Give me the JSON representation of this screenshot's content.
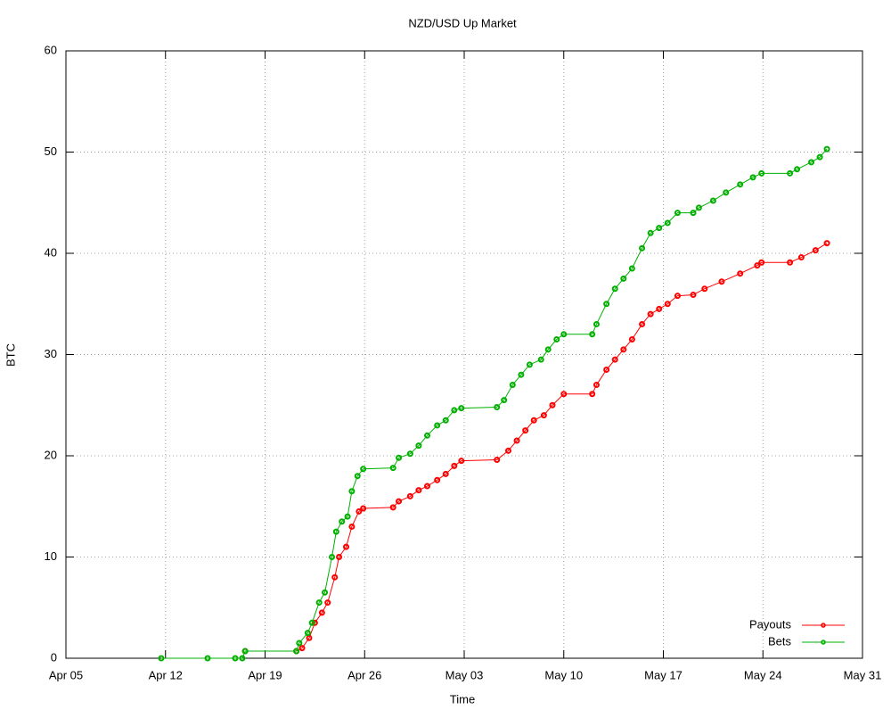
{
  "chart_data": {
    "type": "line",
    "title": "NZD/USD Up Market",
    "xlabel": "Time",
    "ylabel": "BTC",
    "xlim": [
      0,
      56
    ],
    "xticks": [
      {
        "value": 0,
        "label": "Apr 05"
      },
      {
        "value": 7,
        "label": "Apr 12"
      },
      {
        "value": 14,
        "label": "Apr 19"
      },
      {
        "value": 21,
        "label": "Apr 26"
      },
      {
        "value": 28,
        "label": "May 03"
      },
      {
        "value": 35,
        "label": "May 10"
      },
      {
        "value": 42,
        "label": "May 17"
      },
      {
        "value": 49,
        "label": "May 24"
      },
      {
        "value": 56,
        "label": "May 31"
      }
    ],
    "ylim": [
      0,
      60
    ],
    "yticks": [
      0,
      10,
      20,
      30,
      40,
      50,
      60
    ],
    "grid": true,
    "legend": "bottom-right",
    "series": [
      {
        "name": "Payouts",
        "color": "#ff0000",
        "x": [
          12.6,
          16.2,
          16.6,
          17.1,
          17.5,
          18.0,
          18.4,
          18.9,
          19.2,
          19.7,
          20.1,
          20.6,
          20.9,
          23.0,
          23.4,
          24.2,
          24.8,
          25.4,
          26.1,
          26.7,
          27.3,
          27.8,
          30.3,
          31.1,
          31.7,
          32.3,
          32.9,
          33.6,
          34.2,
          35.0,
          37.0,
          37.3,
          38.0,
          38.6,
          39.2,
          39.8,
          40.5,
          41.1,
          41.7,
          42.3,
          43.0,
          44.1,
          44.9,
          46.1,
          47.4,
          48.6,
          48.9,
          50.9,
          51.7,
          52.7,
          53.5
        ],
        "values": [
          0.7,
          0.7,
          1,
          2,
          3.5,
          4.5,
          5.5,
          8,
          10,
          11,
          13,
          14.5,
          14.8,
          14.9,
          15.5,
          16,
          16.6,
          17,
          17.6,
          18.2,
          19,
          19.5,
          19.6,
          20.5,
          21.5,
          22.5,
          23.5,
          24,
          25,
          26.1,
          26.1,
          27,
          28.5,
          29.5,
          30.5,
          31.5,
          33,
          34,
          34.5,
          35,
          35.8,
          35.9,
          36.5,
          37.2,
          38,
          38.8,
          39.1,
          39.1,
          39.6,
          40.3,
          41
        ]
      },
      {
        "name": "Bets",
        "color": "#00b000",
        "x": [
          6.7,
          9.96,
          11.9,
          12.4,
          12.6,
          16.2,
          16.4,
          17.0,
          17.3,
          17.8,
          18.2,
          18.7,
          19.0,
          19.4,
          19.8,
          20.1,
          20.5,
          20.9,
          23.0,
          23.4,
          24.2,
          24.8,
          25.4,
          26.1,
          26.7,
          27.3,
          27.8,
          30.3,
          30.8,
          31.4,
          32.0,
          32.6,
          33.4,
          33.9,
          34.5,
          35.0,
          37.0,
          37.3,
          38.0,
          38.6,
          39.2,
          39.8,
          40.5,
          41.1,
          41.7,
          42.3,
          43.0,
          44.1,
          44.5,
          45.5,
          46.4,
          47.4,
          48.3,
          48.9,
          50.9,
          51.4,
          52.4,
          53.0,
          53.5
        ],
        "values": [
          0,
          0,
          0,
          0,
          0.7,
          0.7,
          1.5,
          2.5,
          3.5,
          5.5,
          6.5,
          10,
          12.5,
          13.5,
          14,
          16.5,
          18,
          18.7,
          18.8,
          19.8,
          20.2,
          21,
          22,
          23,
          23.5,
          24.5,
          24.7,
          24.8,
          25.5,
          27,
          28,
          29,
          29.5,
          30.5,
          31.5,
          32,
          32,
          33,
          35,
          36.5,
          37.5,
          38.5,
          40.5,
          42,
          42.5,
          43,
          44,
          44,
          44.5,
          45.2,
          46,
          46.8,
          47.5,
          47.9,
          47.9,
          48.3,
          49,
          49.5,
          50.3
        ]
      }
    ]
  }
}
